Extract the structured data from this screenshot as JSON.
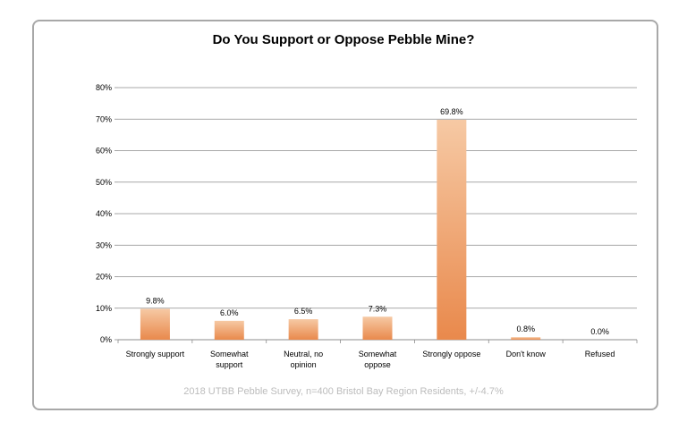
{
  "colors": {
    "bar_light": "#f6c9a4",
    "bar_dark": "#e9894c",
    "gridline": "#8c8c8c",
    "frame": "#a8a8a8",
    "footnote": "#bcbcbc"
  },
  "chart_data": {
    "type": "bar",
    "title": "Do You Support or Oppose Pebble Mine?",
    "xlabel": "",
    "ylabel": "",
    "ylim": [
      0,
      0.8
    ],
    "y_ticks": [
      0,
      0.1,
      0.2,
      0.3,
      0.4,
      0.5,
      0.6,
      0.7,
      0.8
    ],
    "y_tick_labels": [
      "0%",
      "10%",
      "20%",
      "30%",
      "40%",
      "50%",
      "60%",
      "70%",
      "80%"
    ],
    "grid": true,
    "legend": "none",
    "categories": [
      [
        "Strongly support"
      ],
      [
        "Somewhat",
        "support"
      ],
      [
        "Neutral, no",
        "opinion"
      ],
      [
        "Somewhat",
        "oppose"
      ],
      [
        "Strongly oppose"
      ],
      [
        "Don't know"
      ],
      [
        "Refused"
      ]
    ],
    "values": [
      0.098,
      0.06,
      0.065,
      0.073,
      0.698,
      0.008,
      0.0
    ],
    "data_labels": [
      "9.8%",
      "6.0%",
      "6.5%",
      "7.3%",
      "69.8%",
      "0.8%",
      "0.0%"
    ],
    "footnote": "2018 UTBB Pebble Survey, n=400 Bristol Bay Region Residents, +/-4.7%"
  }
}
